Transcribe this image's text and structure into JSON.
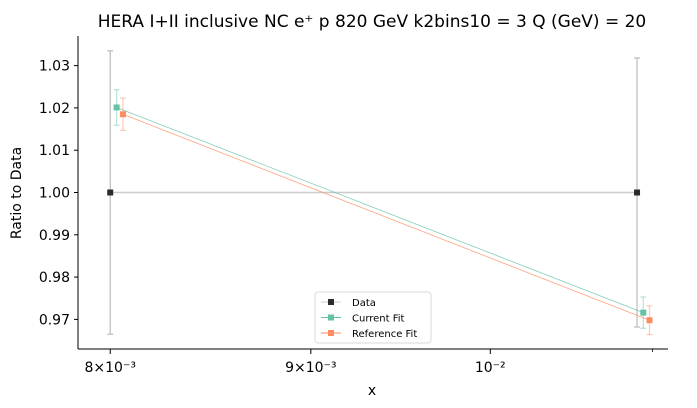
{
  "chart_data": {
    "type": "line",
    "title": "HERA I+II inclusive NC e⁺ p 820 GeV k2bins10 = 3 Q (GeV) = 20",
    "xlabel": "x",
    "ylabel": "Ratio to Data",
    "xscale": "log",
    "xlim": [
      0.00785,
      0.0111
    ],
    "ylim": [
      0.963,
      1.037
    ],
    "x_ticks": [
      {
        "value": 0.008,
        "label": "8×10⁻³"
      },
      {
        "value": 0.009,
        "label": "9×10⁻³"
      },
      {
        "value": 0.01,
        "label": "10⁻²"
      }
    ],
    "y_ticks": [
      0.97,
      0.98,
      0.99,
      1.0,
      1.01,
      1.02,
      1.03
    ],
    "y_tick_labels": [
      "0.97",
      "0.98",
      "0.99",
      "1.00",
      "1.01",
      "1.02",
      "1.03"
    ],
    "grid": false,
    "legend_position": "lower-center",
    "series": [
      {
        "name": "Data",
        "color": "#2b2b2b",
        "line_color": "#cccccc",
        "marker": "square",
        "points": [
          {
            "x": 0.008,
            "y": 1.0,
            "err": 0.0335
          },
          {
            "x": 0.0109,
            "y": 1.0,
            "err": 0.0318
          }
        ]
      },
      {
        "name": "Current Fit",
        "color": "#66c2a5",
        "marker": "square",
        "points": [
          {
            "x": 0.00803,
            "y": 1.0201,
            "err": 0.0042
          },
          {
            "x": 0.01094,
            "y": 0.9716,
            "err": 0.0037
          }
        ]
      },
      {
        "name": "Reference Fit",
        "color": "#fc8d62",
        "marker": "square",
        "points": [
          {
            "x": 0.00806,
            "y": 1.0185,
            "err": 0.0038
          },
          {
            "x": 0.01098,
            "y": 0.9698,
            "err": 0.0034
          }
        ]
      }
    ]
  }
}
